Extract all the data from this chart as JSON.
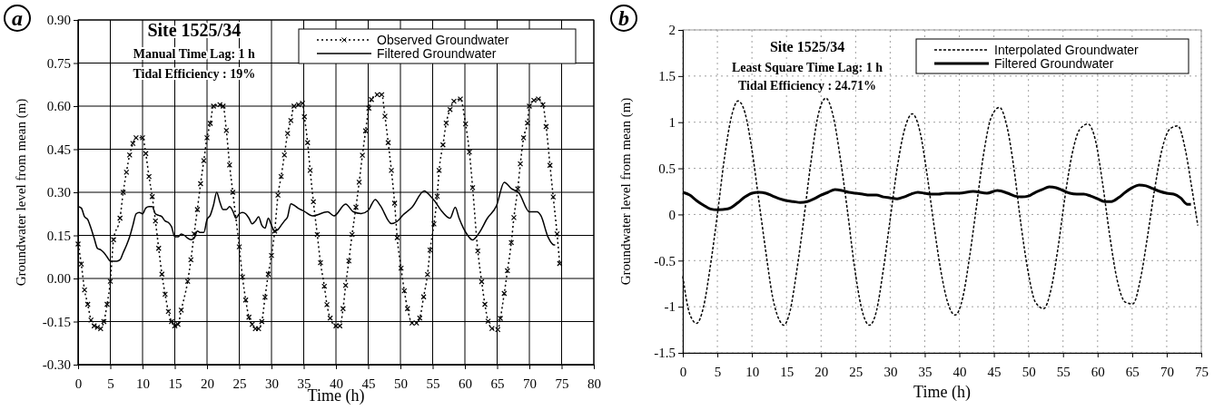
{
  "chart_data": [
    {
      "type": "line",
      "title": "Site 1525/34",
      "xlabel": "Time (h)",
      "ylabel": "Groundwater level from mean (m)",
      "annotations": [
        "Manual Time Lag: 1 h",
        "Tidal Efficiency : 19%",
        "a"
      ],
      "xlim": [
        0,
        80
      ],
      "xticks": [
        0,
        5,
        10,
        15,
        20,
        25,
        30,
        35,
        40,
        45,
        50,
        55,
        60,
        65,
        70,
        75,
        80
      ],
      "ylim": [
        -0.3,
        0.9
      ],
      "yticks": [
        {
          "value": -0.3,
          "label": "-0.30"
        },
        -0.15,
        {
          "value": 0,
          "label": "0.00"
        },
        0.15,
        {
          "value": 0.3,
          "label": "0.30"
        },
        0.45,
        {
          "value": 0.6,
          "label": "0.60"
        },
        0.75,
        {
          "value": 0.9,
          "label": "0.90"
        }
      ],
      "grid": true,
      "legend": "top right",
      "series": [
        {
          "name": "Observed Groundwater",
          "color": "#000000",
          "marker": "cross",
          "line_style": "dotted",
          "x": [
            0,
            0.5,
            1,
            1.5,
            2,
            2.5,
            3,
            3.5,
            4,
            4.5,
            5,
            5.5,
            6.5,
            7,
            7.5,
            8,
            8.5,
            9,
            10,
            10.5,
            11,
            11.5,
            12,
            12.5,
            13,
            13.5,
            14,
            14.5,
            15,
            15.5,
            16,
            17,
            17.5,
            18,
            18.5,
            19,
            19.5,
            20,
            20.5,
            21,
            22,
            22.5,
            23,
            23.5,
            24,
            25,
            25.5,
            26,
            26.5,
            27,
            27.5,
            28,
            28.5,
            29,
            29.5,
            30,
            30.5,
            31,
            31.5,
            32,
            32.5,
            33,
            33.5,
            34.2,
            34.8,
            35.1,
            35.6,
            36,
            36.5,
            37.1,
            37.6,
            38.2,
            38.6,
            39.1,
            40,
            40.6,
            41.1,
            41.5,
            42,
            42.5,
            43.1,
            43.6,
            44.1,
            44.6,
            45.1,
            45.5,
            46.4,
            47.1,
            47.6,
            48.1,
            48.6,
            49.1,
            49.5,
            50.1,
            50.6,
            51.1,
            51.8,
            52.5,
            53,
            53.6,
            54.2,
            54.6,
            55.2,
            55.7,
            56,
            56.6,
            57.1,
            57.7,
            58.3,
            59.3,
            60.1,
            60.7,
            61.2,
            62,
            62.6,
            63.1,
            63.6,
            64.2,
            65.1,
            65.5,
            66.1,
            66.6,
            67.2,
            67.6,
            68.2,
            68.6,
            69.1,
            69.7,
            70,
            70.7,
            71.4,
            72.1,
            72.6,
            73.2,
            73.7,
            74.3,
            74.7
          ],
          "values": [
            0.12,
            0.05,
            -0.04,
            -0.09,
            -0.145,
            -0.165,
            -0.17,
            -0.175,
            -0.15,
            -0.09,
            -0.01,
            0.135,
            0.21,
            0.3,
            0.37,
            0.43,
            0.47,
            0.49,
            0.49,
            0.435,
            0.355,
            0.285,
            0.2,
            0.105,
            0.015,
            -0.055,
            -0.115,
            -0.15,
            -0.165,
            -0.16,
            -0.11,
            -0.01,
            0.065,
            0.155,
            0.24,
            0.33,
            0.41,
            0.49,
            0.54,
            0.6,
            0.605,
            0.6,
            0.515,
            0.395,
            0.3,
            0.11,
            0.005,
            -0.075,
            -0.135,
            -0.16,
            -0.175,
            -0.175,
            -0.15,
            -0.065,
            0.015,
            0.08,
            0.165,
            0.29,
            0.355,
            0.43,
            0.505,
            0.55,
            0.6,
            0.605,
            0.61,
            0.563,
            0.473,
            0.376,
            0.267,
            0.153,
            0.055,
            -0.027,
            -0.091,
            -0.138,
            -0.165,
            -0.165,
            -0.105,
            -0.024,
            0.061,
            0.153,
            0.248,
            0.335,
            0.429,
            0.514,
            0.593,
            0.623,
            0.64,
            0.64,
            0.565,
            0.473,
            0.376,
            0.262,
            0.142,
            0.036,
            -0.043,
            -0.105,
            -0.155,
            -0.155,
            -0.138,
            -0.064,
            0.014,
            0.099,
            0.19,
            0.286,
            0.376,
            0.465,
            0.541,
            0.588,
            0.617,
            0.625,
            0.538,
            0.44,
            0.316,
            0.096,
            -0.011,
            -0.09,
            -0.149,
            -0.174,
            -0.178,
            -0.139,
            -0.052,
            0.027,
            0.125,
            0.212,
            0.312,
            0.399,
            0.49,
            0.541,
            0.6,
            0.62,
            0.625,
            0.605,
            0.529,
            0.394,
            0.284,
            0.155,
            0.052
          ]
        },
        {
          "name": "Filtered Groundwater",
          "color": "#000000",
          "marker": "none",
          "line_style": "solid",
          "x": [
            0,
            0.5,
            1,
            1.5,
            2,
            2.5,
            3,
            3.5,
            4,
            4.5,
            5,
            5.5,
            6,
            6.5,
            7,
            7.5,
            8,
            8.5,
            9,
            9.5,
            10,
            10.5,
            11,
            11.5,
            12,
            12.5,
            13,
            13.5,
            14,
            14.5,
            15,
            15.5,
            16,
            16.5,
            17,
            17.5,
            18,
            18.5,
            19,
            19.5,
            20,
            20.5,
            21,
            21.5,
            22,
            22.5,
            23,
            23.5,
            24,
            24.5,
            25,
            25.5,
            26,
            26.5,
            27,
            27.5,
            28,
            28.5,
            29,
            29.5,
            30,
            30.5,
            31,
            31.5,
            32,
            32.5,
            33,
            33.5,
            34.1,
            35,
            36.4,
            38.7,
            39.7,
            41.5,
            42.7,
            43.9,
            45,
            46.1,
            46.9,
            48.6,
            49.5,
            50.4,
            51.8,
            53.7,
            54.6,
            55.3,
            56.5,
            57.7,
            58.5,
            59.1,
            60.2,
            61.2,
            62.1,
            63.5,
            64.9,
            66.1,
            67.2,
            68.4,
            70,
            71.2,
            71.8,
            72.9,
            73.8,
            74
          ],
          "values": [
            0.25,
            0.245,
            0.215,
            0.205,
            0.175,
            0.14,
            0.105,
            0.1,
            0.09,
            0.075,
            0.06,
            0.06,
            0.06,
            0.065,
            0.09,
            0.115,
            0.145,
            0.185,
            0.225,
            0.23,
            0.225,
            0.245,
            0.25,
            0.25,
            0.225,
            0.22,
            0.215,
            0.2,
            0.195,
            0.18,
            0.145,
            0.145,
            0.155,
            0.15,
            0.14,
            0.135,
            0.14,
            0.165,
            0.16,
            0.16,
            0.205,
            0.22,
            0.255,
            0.3,
            0.265,
            0.24,
            0.24,
            0.25,
            0.235,
            0.21,
            0.225,
            0.23,
            0.225,
            0.21,
            0.19,
            0.2,
            0.215,
            0.185,
            0.175,
            0.21,
            0.185,
            0.165,
            0.17,
            0.185,
            0.2,
            0.215,
            0.26,
            0.255,
            0.245,
            0.235,
            0.218,
            0.232,
            0.218,
            0.259,
            0.232,
            0.226,
            0.237,
            0.275,
            0.253,
            0.191,
            0.199,
            0.221,
            0.248,
            0.305,
            0.288,
            0.27,
            0.232,
            0.21,
            0.248,
            0.21,
            0.158,
            0.134,
            0.155,
            0.21,
            0.253,
            0.335,
            0.313,
            0.297,
            0.232,
            0.232,
            0.218,
            0.144,
            0.117,
            0.117
          ]
        }
      ]
    },
    {
      "type": "line",
      "title": "Site 1525/34",
      "xlabel": "Time (h)",
      "ylabel": "Groundwater level from mean (m)",
      "annotations": [
        "Least Square Time Lag: 1 h",
        "Tidal Efficiency : 24.71%",
        "b"
      ],
      "xlim": [
        0,
        75
      ],
      "xticks": [
        0,
        5,
        10,
        15,
        20,
        25,
        30,
        35,
        40,
        45,
        50,
        55,
        60,
        65,
        70,
        75
      ],
      "ylim": [
        -1.5,
        2
      ],
      "yticks": [
        -1.5,
        -1,
        -0.5,
        0,
        0.5,
        1,
        1.5,
        2
      ],
      "grid": true,
      "legend": "top right",
      "series": [
        {
          "name": "Interpolated Groundwater",
          "color": "#000000",
          "marker": "none",
          "line_style": "dashed",
          "x": [
            0,
            1,
            2,
            3,
            4,
            5,
            6,
            7,
            8,
            9,
            10,
            11,
            12,
            13,
            14,
            14.6,
            15.5,
            16.5,
            17.5,
            18.5,
            19.5,
            20.7,
            21.8,
            22.8,
            23.8,
            24.8,
            25.8,
            27,
            28,
            29,
            30,
            31,
            32,
            33.2,
            34.3,
            35.3,
            36.3,
            37.3,
            38.3,
            39.4,
            40.5,
            41.5,
            42.5,
            43.5,
            44.6,
            45.8,
            46.9,
            47.9,
            48.9,
            49.9,
            51,
            52.2,
            53.3,
            54.3,
            55.3,
            56.3,
            57.4,
            58.6,
            59.7,
            60.7,
            61.7,
            62.8,
            64,
            65.1,
            66.2,
            67.2,
            68.2,
            69.3,
            70.5,
            71.6,
            72.7,
            73.6,
            74.5
          ],
          "values": [
            -0.67,
            -1.08,
            -1.18,
            -1,
            -0.55,
            0,
            0.6,
            1.05,
            1.23,
            1.1,
            0.7,
            0.15,
            -0.4,
            -0.9,
            -1.15,
            -1.2,
            -1.05,
            -0.6,
            -0.05,
            0.55,
            1.05,
            1.26,
            1.05,
            0.6,
            0.05,
            -0.55,
            -1,
            -1.2,
            -1.05,
            -0.6,
            -0.05,
            0.5,
            0.9,
            1.09,
            0.9,
            0.45,
            -0.1,
            -0.6,
            -0.95,
            -1.09,
            -0.9,
            -0.45,
            0.1,
            0.65,
            1.05,
            1.16,
            0.95,
            0.5,
            -0.1,
            -0.6,
            -0.95,
            -1.02,
            -0.8,
            -0.35,
            0.2,
            0.65,
            0.92,
            0.98,
            0.8,
            0.35,
            -0.2,
            -0.7,
            -0.95,
            -0.97,
            -0.7,
            -0.25,
            0.25,
            0.7,
            0.93,
            0.96,
            0.7,
            0.3,
            -0.12
          ]
        },
        {
          "name": "Filtered Groundwater",
          "color": "#000000",
          "marker": "none",
          "line_style": "solid",
          "x": [
            0,
            1,
            2,
            3,
            4,
            5,
            6.5,
            8,
            9,
            10,
            11,
            12,
            13,
            14,
            15,
            16,
            17,
            18,
            19,
            20,
            21,
            22,
            23,
            24,
            25,
            26,
            27,
            28,
            29,
            30,
            31,
            32,
            33,
            34,
            35,
            36,
            37,
            38,
            40,
            42,
            44,
            45.5,
            47,
            48,
            49,
            50,
            51,
            52,
            53,
            54,
            55,
            56,
            57,
            58,
            59,
            60,
            61,
            62,
            63,
            64,
            65,
            66,
            67,
            68,
            69,
            70,
            71,
            72,
            73,
            73.5
          ],
          "values": [
            0.24,
            0.21,
            0.15,
            0.1,
            0.06,
            0.05,
            0.06,
            0.13,
            0.19,
            0.23,
            0.24,
            0.23,
            0.2,
            0.17,
            0.15,
            0.14,
            0.13,
            0.14,
            0.17,
            0.21,
            0.24,
            0.27,
            0.26,
            0.24,
            0.23,
            0.22,
            0.21,
            0.21,
            0.19,
            0.18,
            0.17,
            0.19,
            0.22,
            0.24,
            0.23,
            0.22,
            0.22,
            0.23,
            0.23,
            0.25,
            0.23,
            0.26,
            0.23,
            0.2,
            0.19,
            0.2,
            0.24,
            0.27,
            0.3,
            0.29,
            0.26,
            0.23,
            0.22,
            0.22,
            0.2,
            0.17,
            0.14,
            0.14,
            0.18,
            0.24,
            0.29,
            0.32,
            0.31,
            0.28,
            0.25,
            0.23,
            0.22,
            0.18,
            0.11,
            0.11
          ]
        }
      ]
    }
  ]
}
